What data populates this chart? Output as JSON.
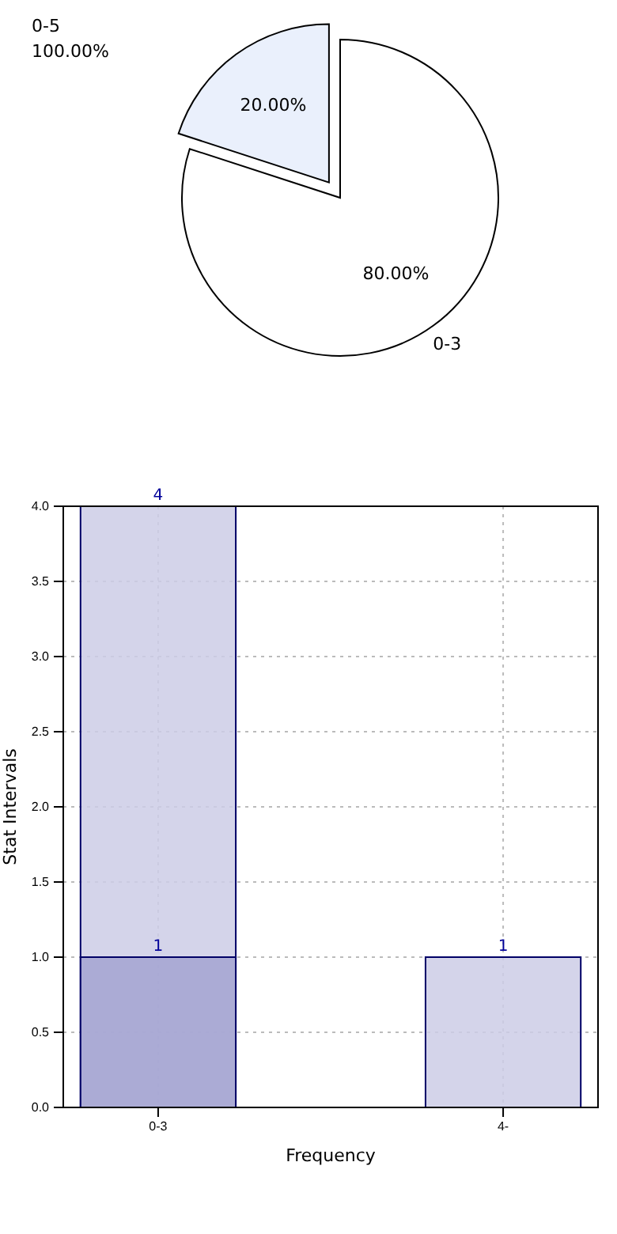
{
  "chart_data": [
    {
      "type": "pie",
      "categories": [
        "0-3",
        null
      ],
      "values": [
        80,
        20
      ],
      "colors": [
        "#ffffff",
        "#eaf0fc"
      ],
      "value_labels": [
        "80.00%",
        "20.00%"
      ],
      "annotations": [
        "0-5",
        "100.00%"
      ]
    },
    {
      "type": "bar",
      "categories": [
        "0-3",
        "4-"
      ],
      "xlabel": "Frequency",
      "ylabel": "Stat Intervals",
      "series": [
        {
          "color": "#ccccE6",
          "values": [
            4,
            1
          ]
        },
        {
          "color": "#a3a3d1",
          "values": [
            1,
            null
          ]
        }
      ],
      "ylim": [
        0,
        4
      ],
      "yticks": [
        {
          "value": 0,
          "label": "0.0"
        },
        {
          "value": 0.5,
          "label": "0.5"
        },
        {
          "value": 1,
          "label": "1.0"
        },
        {
          "value": 1.5,
          "label": "1.5"
        },
        {
          "value": 2,
          "label": "2.0"
        },
        {
          "value": 2.5,
          "label": "2.5"
        },
        {
          "value": 3,
          "label": "3.0"
        },
        {
          "value": 3.5,
          "label": "3.5"
        },
        {
          "value": 4,
          "label": "4.0"
        }
      ],
      "grid": true,
      "data_labels": true
    }
  ]
}
